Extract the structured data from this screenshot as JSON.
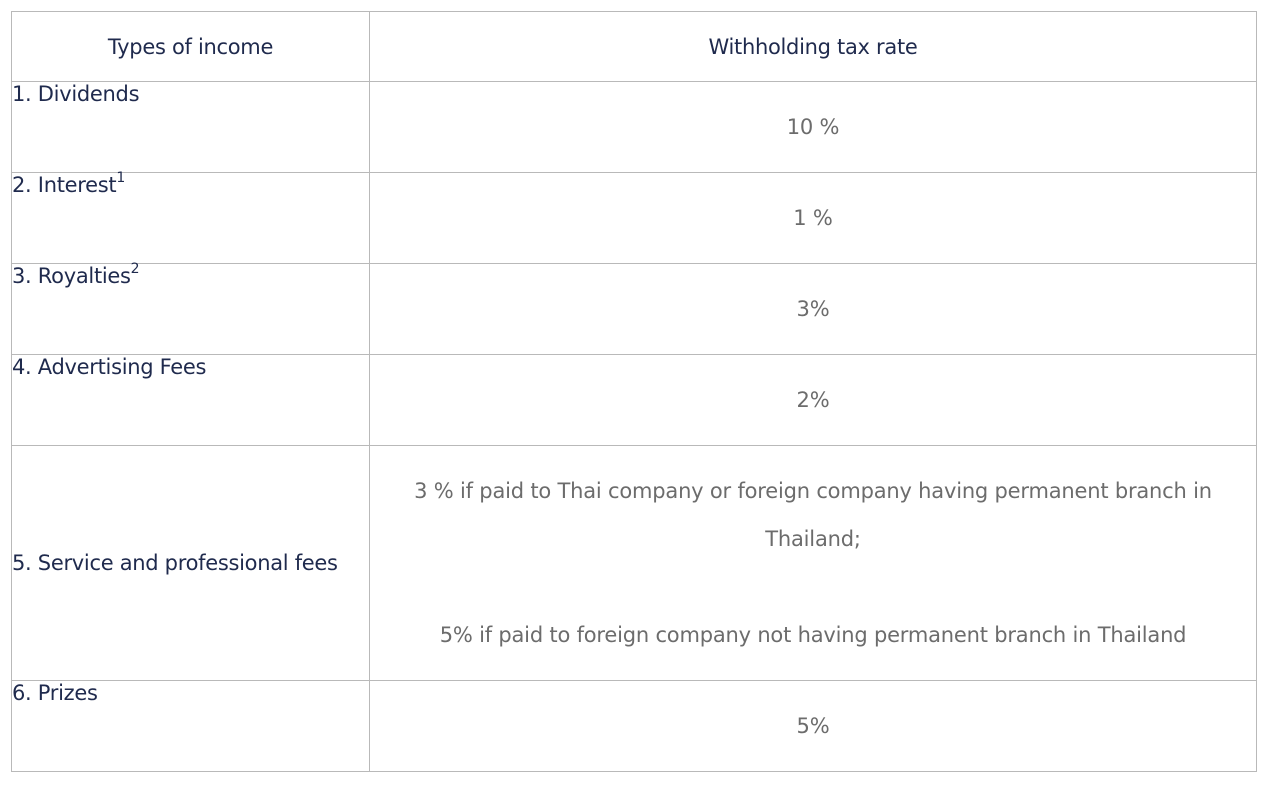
{
  "table": {
    "headers": {
      "income": "Types of income",
      "rate": "Withholding tax rate"
    },
    "rows": [
      {
        "income": "1. Dividends",
        "note": "",
        "rate": "10 %"
      },
      {
        "income": "2. Interest",
        "note": "1",
        "rate": "1 %"
      },
      {
        "income": "3. Royalties",
        "note": "2",
        "rate": "3%"
      },
      {
        "income": "4. Advertising Fees",
        "note": "",
        "rate": "2%"
      },
      {
        "income": "5. Service and professional fees",
        "note": "",
        "rate_line1": "3 % if paid to Thai company or foreign company having permanent branch in Thailand;",
        "rate_line2": "5% if paid to foreign company not having permanent branch in Thailand"
      },
      {
        "income": "6. Prizes",
        "note": "",
        "rate": "5%"
      }
    ]
  },
  "colors": {
    "header_text": "#1f2a4d",
    "income_text": "#1f2a4d",
    "rate_text": "#6c6c6c",
    "border": "#b9b9b9"
  }
}
